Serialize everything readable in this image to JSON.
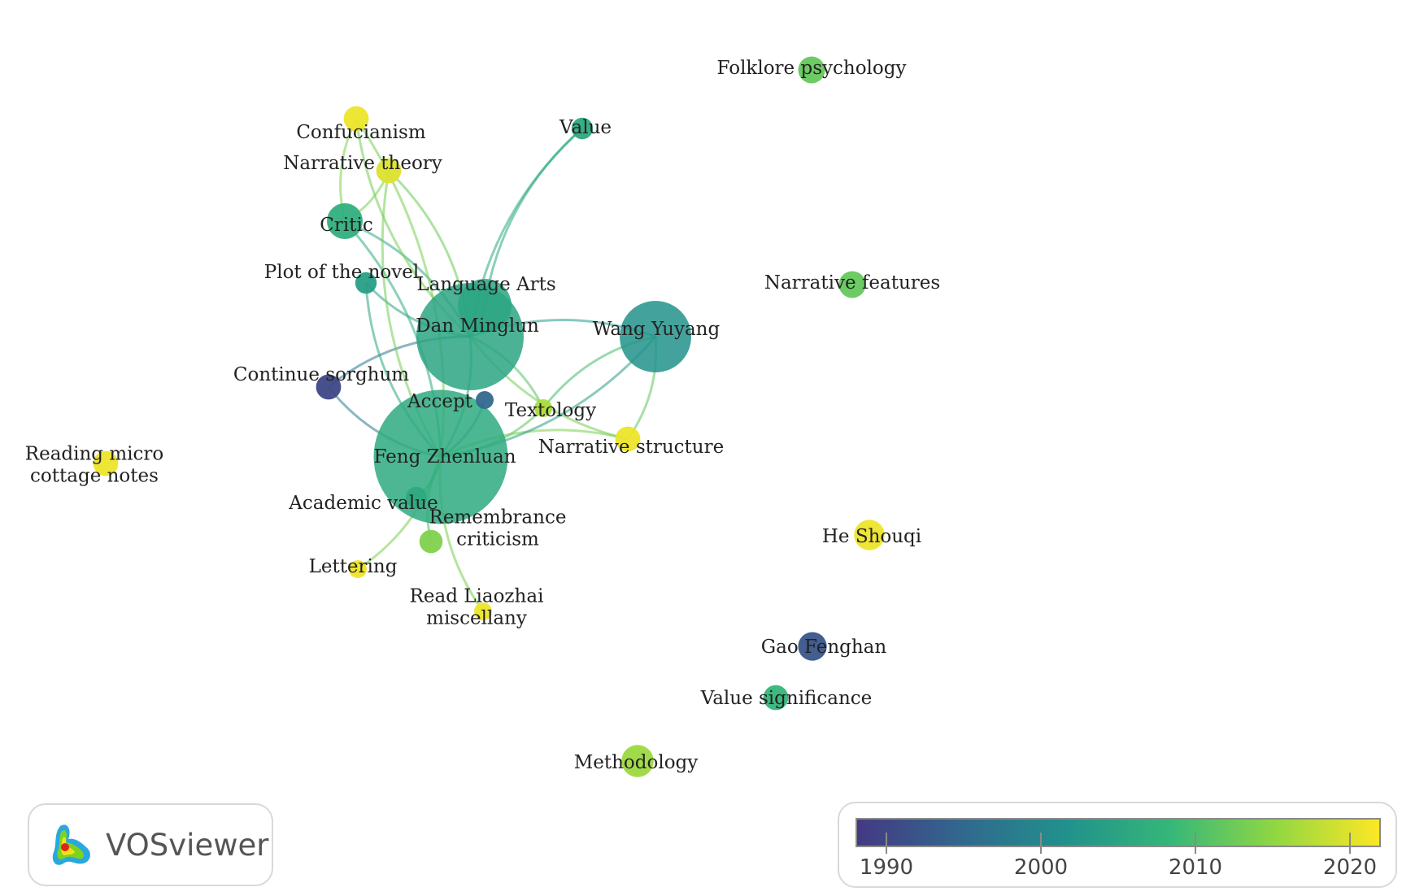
{
  "app": "VOSviewer",
  "legend": {
    "ticks": [
      "1990",
      "2000",
      "2010",
      "2020"
    ],
    "tick_values": [
      1990,
      2000,
      2010,
      2020
    ],
    "range": [
      1988,
      2022
    ],
    "colors": [
      "#443983",
      "#31688e",
      "#21918c",
      "#35b779",
      "#90d743",
      "#fde725"
    ]
  },
  "nodes": [
    {
      "id": "confucianism",
      "label": [
        "Confucianism"
      ],
      "year": 2021,
      "weight": 1.4
    },
    {
      "id": "narrative-theory",
      "label": [
        "Narrative theory"
      ],
      "year": 2020,
      "weight": 1.4
    },
    {
      "id": "critic",
      "label": [
        "Critic"
      ],
      "year": 2007,
      "weight": 2.0
    },
    {
      "id": "plot-of-the-novel",
      "label": [
        "Plot of the novel"
      ],
      "year": 2004,
      "weight": 1.2
    },
    {
      "id": "language-arts",
      "label": [
        "Language Arts"
      ],
      "year": 2005,
      "weight": 3.0
    },
    {
      "id": "dan-minglun",
      "label": [
        "Dan  Minglun"
      ],
      "year": 2005,
      "weight": 6.0
    },
    {
      "id": "value",
      "label": [
        "Value"
      ],
      "year": 2006,
      "weight": 1.2
    },
    {
      "id": "wang-yuyang",
      "label": [
        "Wang Yuyang"
      ],
      "year": 2002,
      "weight": 4.0
    },
    {
      "id": "continue-sorghum",
      "label": [
        "Continue sorghum"
      ],
      "year": 1990,
      "weight": 1.4
    },
    {
      "id": "accept",
      "label": [
        "Accept"
      ],
      "year": 1995,
      "weight": 1.0
    },
    {
      "id": "textology",
      "label": [
        "Textology"
      ],
      "year": 2017,
      "weight": 1.0
    },
    {
      "id": "narrative-structure",
      "label": [
        "Narrative structure"
      ],
      "year": 2021,
      "weight": 1.4
    },
    {
      "id": "feng-zhenluan",
      "label": [
        "Feng Zhenluan"
      ],
      "year": 2006,
      "weight": 7.5
    },
    {
      "id": "academic-value",
      "label": [
        "Academic value"
      ],
      "year": 2006,
      "weight": 1.2
    },
    {
      "id": "remembrance-criticism",
      "label": [
        "Remembrance",
        "criticism"
      ],
      "year": 2014,
      "weight": 1.3
    },
    {
      "id": "lettering",
      "label": [
        "Lettering"
      ],
      "year": 2021,
      "weight": 1.0
    },
    {
      "id": "read-liaozhai-miscellany",
      "label": [
        "Read Liaozhai",
        "miscellany"
      ],
      "year": 2021,
      "weight": 1.0
    },
    {
      "id": "reading-micro-cottage-notes",
      "label": [
        "Reading micro",
        "cottage notes"
      ],
      "year": 2021,
      "weight": 1.4
    },
    {
      "id": "folklore-psychology",
      "label": [
        "Folklore psychology"
      ],
      "year": 2012,
      "weight": 1.5
    },
    {
      "id": "narrative-features",
      "label": [
        "Narrative features"
      ],
      "year": 2012,
      "weight": 1.5
    },
    {
      "id": "he-shouqi",
      "label": [
        "He Shouqi"
      ],
      "year": 2021,
      "weight": 1.7
    },
    {
      "id": "gao-fenghan",
      "label": [
        "Gao Fenghan"
      ],
      "year": 1992,
      "weight": 1.6
    },
    {
      "id": "value-significance",
      "label": [
        "Value significance"
      ],
      "year": 2008,
      "weight": 1.4
    },
    {
      "id": "methodology",
      "label": [
        "Methodology"
      ],
      "year": 2016,
      "weight": 1.8
    }
  ],
  "links": [
    [
      "dan-minglun",
      "feng-zhenluan"
    ],
    [
      "dan-minglun",
      "language-arts"
    ],
    [
      "dan-minglun",
      "wang-yuyang"
    ],
    [
      "dan-minglun",
      "critic"
    ],
    [
      "dan-minglun",
      "value"
    ],
    [
      "dan-minglun",
      "narrative-theory"
    ],
    [
      "dan-minglun",
      "confucianism"
    ],
    [
      "dan-minglun",
      "continue-sorghum"
    ],
    [
      "dan-minglun",
      "textology"
    ],
    [
      "dan-minglun",
      "narrative-structure"
    ],
    [
      "dan-minglun",
      "plot-of-the-novel"
    ],
    [
      "feng-zhenluan",
      "critic"
    ],
    [
      "feng-zhenluan",
      "continue-sorghum"
    ],
    [
      "feng-zhenluan",
      "accept"
    ],
    [
      "feng-zhenluan",
      "narrative-structure"
    ],
    [
      "feng-zhenluan",
      "wang-yuyang"
    ],
    [
      "feng-zhenluan",
      "academic-value"
    ],
    [
      "feng-zhenluan",
      "remembrance-criticism"
    ],
    [
      "feng-zhenluan",
      "lettering"
    ],
    [
      "feng-zhenluan",
      "read-liaozhai-miscellany"
    ],
    [
      "feng-zhenluan",
      "narrative-theory"
    ],
    [
      "feng-zhenluan",
      "confucianism"
    ],
    [
      "feng-zhenluan",
      "plot-of-the-novel"
    ],
    [
      "feng-zhenluan",
      "textology"
    ],
    [
      "wang-yuyang",
      "narrative-structure"
    ],
    [
      "wang-yuyang",
      "textology"
    ],
    [
      "language-arts",
      "value"
    ],
    [
      "critic",
      "narrative-theory"
    ],
    [
      "critic",
      "confucianism"
    ]
  ]
}
